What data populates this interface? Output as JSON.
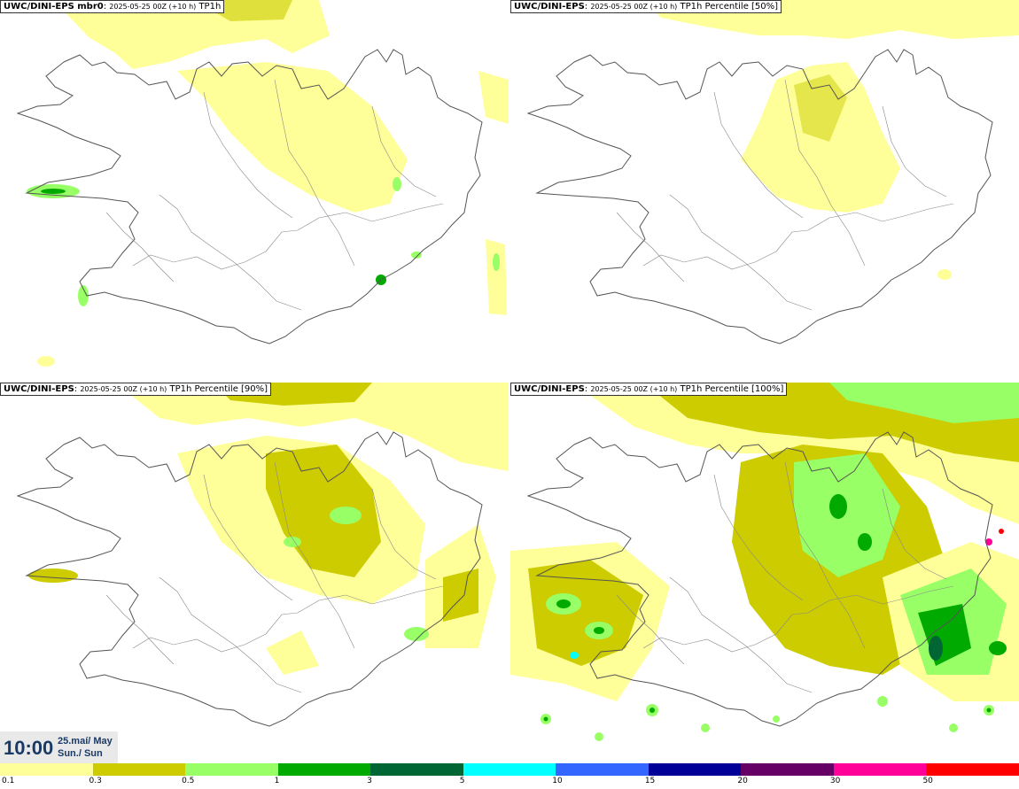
{
  "panels": [
    {
      "model": "UWC/DINI-EPS mbr0",
      "run": "2025-05-25 00Z (+10 h)",
      "field": "TP1h"
    },
    {
      "model": "UWC/DINI-EPS",
      "run": "2025-05-25 00Z (+10 h)",
      "field": "TP1h Percentile [50%]"
    },
    {
      "model": "UWC/DINI-EPS",
      "run": "2025-05-25 00Z (+10 h)",
      "field": "TP1h Percentile [90%]"
    },
    {
      "model": "UWC/DINI-EPS",
      "run": "2025-05-25 00Z (+10 h)",
      "field": "TP1h Percentile [100%]"
    }
  ],
  "time": {
    "clock": "10:00",
    "date_line1": "25.maí/ May",
    "date_line2": "Sun./ Sun"
  },
  "colorbar": {
    "colors": [
      "#ffff99",
      "#cccc00",
      "#99ff66",
      "#00aa00",
      "#006633",
      "#00ffff",
      "#3366ff",
      "#000099",
      "#660066",
      "#ff0099",
      "#ff0000"
    ],
    "labels": [
      "0.1",
      "0.3",
      "0.5",
      "1",
      "3",
      "5",
      "10",
      "15",
      "20",
      "30",
      "50"
    ]
  },
  "colors": {
    "light_yellow": "#ffff99",
    "olive": "#cccc00",
    "light_green": "#99ff66",
    "green": "#00aa00",
    "dark_green": "#006633",
    "coastline": "#555555"
  }
}
